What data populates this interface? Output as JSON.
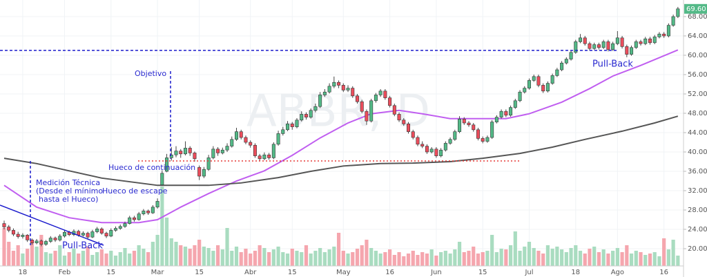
{
  "chart_data": {
    "type": "candlestick",
    "watermark": "ABBR, D",
    "categories": [
      null,
      null,
      null,
      null,
      "18",
      null,
      null,
      null,
      null,
      null,
      null,
      null,
      null,
      "Feb",
      null,
      null,
      null,
      null,
      null,
      null,
      null,
      null,
      null,
      "15",
      null,
      null,
      null,
      null,
      null,
      null,
      null,
      null,
      null,
      "Mar",
      null,
      null,
      null,
      null,
      null,
      null,
      null,
      null,
      "15",
      null,
      null,
      null,
      null,
      null,
      null,
      null,
      null,
      null,
      null,
      "Abr",
      null,
      null,
      null,
      null,
      null,
      null,
      null,
      null,
      "15",
      null,
      null,
      null,
      null,
      null,
      null,
      null,
      null,
      null,
      null,
      "May",
      null,
      null,
      null,
      null,
      null,
      null,
      null,
      null,
      null,
      "16",
      null,
      null,
      null,
      null,
      null,
      null,
      null,
      null,
      null,
      "Jun",
      null,
      null,
      null,
      null,
      null,
      null,
      null,
      null,
      null,
      "15",
      null,
      null,
      null,
      null,
      null,
      null,
      null,
      null,
      null,
      "Jul",
      null,
      null,
      null,
      null,
      null,
      null,
      null,
      null,
      null,
      "18",
      null,
      null,
      null,
      null,
      null,
      null,
      null,
      null,
      "Ago",
      null,
      null,
      null,
      null,
      null,
      null,
      null,
      null,
      null,
      "16",
      null,
      null,
      null
    ],
    "ohlc": [
      [
        25.2,
        25.8,
        24.0,
        24.5
      ],
      [
        24.5,
        24.9,
        23.4,
        23.8
      ],
      [
        23.8,
        24.2,
        22.6,
        23.0
      ],
      [
        23.0,
        23.5,
        22.1,
        22.5
      ],
      [
        22.5,
        23.2,
        22.1,
        22.8
      ],
      [
        22.8,
        23.0,
        21.4,
        21.8
      ],
      [
        21.8,
        22.1,
        20.8,
        21.2
      ],
      [
        21.2,
        22.0,
        20.9,
        21.6
      ],
      [
        21.6,
        21.9,
        20.5,
        20.9
      ],
      [
        20.9,
        21.8,
        20.6,
        21.5
      ],
      [
        21.5,
        22.6,
        21.2,
        22.2
      ],
      [
        22.2,
        22.5,
        21.4,
        21.8
      ],
      [
        21.8,
        23.0,
        21.5,
        22.6
      ],
      [
        22.6,
        23.8,
        22.3,
        23.4
      ],
      [
        23.4,
        23.7,
        22.6,
        22.9
      ],
      [
        22.9,
        24.0,
        22.6,
        23.6
      ],
      [
        23.6,
        23.9,
        22.5,
        22.8
      ],
      [
        22.8,
        23.6,
        22.5,
        23.2
      ],
      [
        23.2,
        23.5,
        22.0,
        22.4
      ],
      [
        22.4,
        23.9,
        22.2,
        23.5
      ],
      [
        23.5,
        24.5,
        23.2,
        24.1
      ],
      [
        24.1,
        24.4,
        22.9,
        23.2
      ],
      [
        23.2,
        23.5,
        22.2,
        22.6
      ],
      [
        22.6,
        24.2,
        22.4,
        23.8
      ],
      [
        23.8,
        24.6,
        23.5,
        24.2
      ],
      [
        24.2,
        25.0,
        23.9,
        24.6
      ],
      [
        24.6,
        25.6,
        24.3,
        25.2
      ],
      [
        25.2,
        26.8,
        25.0,
        26.4
      ],
      [
        26.4,
        26.8,
        25.6,
        26.0
      ],
      [
        26.0,
        27.6,
        25.8,
        27.2
      ],
      [
        27.2,
        28.2,
        26.9,
        27.8
      ],
      [
        27.8,
        28.1,
        27.0,
        27.4
      ],
      [
        27.4,
        29.0,
        27.2,
        28.6
      ],
      [
        28.6,
        30.4,
        28.3,
        29.8
      ],
      [
        33.2,
        36.2,
        33.0,
        35.6
      ],
      [
        36.0,
        39.6,
        35.8,
        38.8
      ],
      [
        38.8,
        41.0,
        38.2,
        39.4
      ],
      [
        39.4,
        41.2,
        38.9,
        40.2
      ],
      [
        40.2,
        40.6,
        38.8,
        39.6
      ],
      [
        39.6,
        42.2,
        39.3,
        40.8
      ],
      [
        40.8,
        41.2,
        39.2,
        39.8
      ],
      [
        39.8,
        40.1,
        38.0,
        38.6
      ],
      [
        36.8,
        37.2,
        34.2,
        35.0
      ],
      [
        35.0,
        36.9,
        34.6,
        36.4
      ],
      [
        36.4,
        39.4,
        36.1,
        38.8
      ],
      [
        38.8,
        41.2,
        38.5,
        40.6
      ],
      [
        40.6,
        41.0,
        39.2,
        39.8
      ],
      [
        39.8,
        40.9,
        39.5,
        40.4
      ],
      [
        40.4,
        41.8,
        40.0,
        41.2
      ],
      [
        41.2,
        43.2,
        40.9,
        42.6
      ],
      [
        42.6,
        45.0,
        42.3,
        44.2
      ],
      [
        44.2,
        44.6,
        42.6,
        43.0
      ],
      [
        43.0,
        43.4,
        41.6,
        42.0
      ],
      [
        42.0,
        42.4,
        40.9,
        41.4
      ],
      [
        41.4,
        41.8,
        38.8,
        39.2
      ],
      [
        39.2,
        39.6,
        38.2,
        38.6
      ],
      [
        38.6,
        39.9,
        38.3,
        39.4
      ],
      [
        39.4,
        39.8,
        38.4,
        38.8
      ],
      [
        38.8,
        42.0,
        38.5,
        41.6
      ],
      [
        41.6,
        44.4,
        41.3,
        43.8
      ],
      [
        43.8,
        45.2,
        43.4,
        44.6
      ],
      [
        44.6,
        46.4,
        44.3,
        45.8
      ],
      [
        45.8,
        46.2,
        44.6,
        45.2
      ],
      [
        45.2,
        47.0,
        44.9,
        46.6
      ],
      [
        46.6,
        48.4,
        46.3,
        47.8
      ],
      [
        47.8,
        48.2,
        46.7,
        47.2
      ],
      [
        47.2,
        49.0,
        46.9,
        48.6
      ],
      [
        48.6,
        50.0,
        48.2,
        49.4
      ],
      [
        49.4,
        52.4,
        49.1,
        51.8
      ],
      [
        51.8,
        53.0,
        51.4,
        52.4
      ],
      [
        52.4,
        54.2,
        52.1,
        53.6
      ],
      [
        53.6,
        55.6,
        53.2,
        54.4
      ],
      [
        54.4,
        54.8,
        53.2,
        53.8
      ],
      [
        53.8,
        54.2,
        52.4,
        52.8
      ],
      [
        52.8,
        53.8,
        52.4,
        53.2
      ],
      [
        53.2,
        53.6,
        51.2,
        51.6
      ],
      [
        51.6,
        52.0,
        50.0,
        50.4
      ],
      [
        50.4,
        50.8,
        48.0,
        48.4
      ],
      [
        48.4,
        48.8,
        45.6,
        46.4
      ],
      [
        46.4,
        51.0,
        46.1,
        50.6
      ],
      [
        50.6,
        52.2,
        50.2,
        51.8
      ],
      [
        51.8,
        53.0,
        51.4,
        52.6
      ],
      [
        52.6,
        53.0,
        50.8,
        51.2
      ],
      [
        51.2,
        51.6,
        49.2,
        49.6
      ],
      [
        49.6,
        50.0,
        47.4,
        47.8
      ],
      [
        47.8,
        48.2,
        46.2,
        46.6
      ],
      [
        46.6,
        47.0,
        45.4,
        45.8
      ],
      [
        45.8,
        46.2,
        43.8,
        44.2
      ],
      [
        44.2,
        44.6,
        42.6,
        43.0
      ],
      [
        43.0,
        43.4,
        41.2,
        41.6
      ],
      [
        41.6,
        42.2,
        40.8,
        41.2
      ],
      [
        41.2,
        41.6,
        39.6,
        40.0
      ],
      [
        40.0,
        41.0,
        39.7,
        40.6
      ],
      [
        40.6,
        41.0,
        38.8,
        39.2
      ],
      [
        39.2,
        40.8,
        38.9,
        40.4
      ],
      [
        40.4,
        42.2,
        40.1,
        41.8
      ],
      [
        41.8,
        43.0,
        41.5,
        42.6
      ],
      [
        42.6,
        44.6,
        42.3,
        44.2
      ],
      [
        44.2,
        47.4,
        43.9,
        46.8
      ],
      [
        46.8,
        47.2,
        45.6,
        46.0
      ],
      [
        46.0,
        46.4,
        45.2,
        45.6
      ],
      [
        45.6,
        46.0,
        44.2,
        44.6
      ],
      [
        44.6,
        45.0,
        42.4,
        42.8
      ],
      [
        42.8,
        43.2,
        41.8,
        42.2
      ],
      [
        42.2,
        43.4,
        41.9,
        43.0
      ],
      [
        43.0,
        46.6,
        42.7,
        46.2
      ],
      [
        46.2,
        47.6,
        45.9,
        47.2
      ],
      [
        47.2,
        48.8,
        46.9,
        48.4
      ],
      [
        48.4,
        48.8,
        47.2,
        47.6
      ],
      [
        47.6,
        49.6,
        47.3,
        49.2
      ],
      [
        49.2,
        51.0,
        48.9,
        50.6
      ],
      [
        50.6,
        52.8,
        50.3,
        52.4
      ],
      [
        52.4,
        53.6,
        52.1,
        53.2
      ],
      [
        53.2,
        55.2,
        52.9,
        54.8
      ],
      [
        54.8,
        56.0,
        54.5,
        55.6
      ],
      [
        55.6,
        56.0,
        53.4,
        53.8
      ],
      [
        53.8,
        54.2,
        52.2,
        52.6
      ],
      [
        52.6,
        54.6,
        52.3,
        54.2
      ],
      [
        54.2,
        56.2,
        53.9,
        55.8
      ],
      [
        55.8,
        57.4,
        55.5,
        57.0
      ],
      [
        57.0,
        58.8,
        56.7,
        58.4
      ],
      [
        58.4,
        59.6,
        58.1,
        59.2
      ],
      [
        59.2,
        61.0,
        58.9,
        60.6
      ],
      [
        60.6,
        63.2,
        60.3,
        62.8
      ],
      [
        62.8,
        64.4,
        62.5,
        63.6
      ],
      [
        63.6,
        64.0,
        62.0,
        62.4
      ],
      [
        62.4,
        62.8,
        61.0,
        61.4
      ],
      [
        61.4,
        62.6,
        61.1,
        62.2
      ],
      [
        62.2,
        62.6,
        61.2,
        61.6
      ],
      [
        61.6,
        63.2,
        61.3,
        62.8
      ],
      [
        62.8,
        63.2,
        60.8,
        61.2
      ],
      [
        61.2,
        62.8,
        60.9,
        62.4
      ],
      [
        62.4,
        65.0,
        62.1,
        63.6
      ],
      [
        63.6,
        64.0,
        61.4,
        61.8
      ],
      [
        61.8,
        62.2,
        59.6,
        60.2
      ],
      [
        60.2,
        62.0,
        59.9,
        61.6
      ],
      [
        61.6,
        63.2,
        61.3,
        62.8
      ],
      [
        62.8,
        63.2,
        62.0,
        62.4
      ],
      [
        62.4,
        63.8,
        62.1,
        63.4
      ],
      [
        63.4,
        63.8,
        62.2,
        62.6
      ],
      [
        62.6,
        64.2,
        62.3,
        63.8
      ],
      [
        63.8,
        64.8,
        63.5,
        64.4
      ],
      [
        64.4,
        64.8,
        63.6,
        64.0
      ],
      [
        64.0,
        66.6,
        63.7,
        66.2
      ],
      [
        66.2,
        68.4,
        65.9,
        68.0
      ],
      [
        68.0,
        70.0,
        67.7,
        69.6
      ]
    ],
    "volume": [
      55,
      35,
      22,
      30,
      18,
      25,
      38,
      28,
      45,
      20,
      18,
      22,
      30,
      15,
      20,
      25,
      18,
      22,
      28,
      16,
      20,
      24,
      18,
      22,
      15,
      20,
      26,
      18,
      22,
      30,
      25,
      20,
      35,
      45,
      115,
      70,
      40,
      35,
      30,
      28,
      25,
      30,
      38,
      28,
      26,
      22,
      30,
      24,
      55,
      22,
      28,
      20,
      25,
      18,
      22,
      30,
      26,
      20,
      24,
      28,
      20,
      18,
      25,
      22,
      20,
      30,
      18,
      22,
      26,
      20,
      24,
      28,
      48,
      22,
      18,
      20,
      25,
      30,
      38,
      26,
      22,
      18,
      20,
      24,
      16,
      20,
      14,
      18,
      22,
      16,
      20,
      18,
      24,
      15,
      20,
      22,
      18,
      24,
      35,
      20,
      22,
      28,
      18,
      20,
      22,
      45,
      20,
      25,
      24,
      30,
      50,
      22,
      28,
      35,
      26,
      22,
      18,
      30,
      25,
      28,
      24,
      20,
      26,
      30,
      22,
      18,
      25,
      28,
      20,
      24,
      18,
      22,
      26,
      20,
      30,
      18,
      22,
      20,
      16,
      18,
      20,
      14,
      40,
      24,
      38,
      15
    ],
    "up_color": "#53b987",
    "down_color": "#eb4d5c",
    "moving_averages": [
      {
        "color": "#c05ef0",
        "x": [
          0,
          7,
          14,
          21,
          29,
          33,
          38,
          44,
          50,
          56,
          62,
          68,
          74,
          79,
          85,
          90,
          96,
          102,
          108,
          113,
          120,
          126,
          131,
          137,
          145
        ],
        "values": [
          33.1,
          28.6,
          26.4,
          25.4,
          25.4,
          26,
          28.6,
          31.4,
          34,
          36.1,
          39.3,
          42.9,
          46,
          47.9,
          48.6,
          47.9,
          46.9,
          46.9,
          46.9,
          47.9,
          50.3,
          53.1,
          55.7,
          57.9,
          61.1
        ]
      },
      {
        "color": "#555555",
        "x": [
          0,
          7,
          14,
          21,
          29,
          33,
          44,
          51,
          59,
          66,
          73,
          81,
          88,
          96,
          103,
          111,
          118,
          125,
          133,
          140,
          145
        ],
        "values": [
          38.7,
          37.6,
          36.1,
          34.6,
          33.6,
          33.1,
          33.1,
          33.6,
          34.7,
          36,
          37.1,
          37.6,
          37.7,
          38,
          38.7,
          39.7,
          41,
          42.6,
          44.3,
          46,
          47.4
        ]
      }
    ],
    "ylim": [
      16.43,
      71.43
    ],
    "yticks": [
      {
        "value": 20,
        "label": "20.00"
      },
      {
        "value": 24,
        "label": "24.00"
      },
      {
        "value": 28,
        "label": "28.00"
      },
      {
        "value": 32,
        "label": "32.00"
      },
      {
        "value": 36,
        "label": "36.00"
      },
      {
        "value": 40,
        "label": "40.00"
      },
      {
        "value": 44,
        "label": "44.00"
      },
      {
        "value": 48,
        "label": "48.00"
      },
      {
        "value": 52,
        "label": "52.00"
      },
      {
        "value": 56,
        "label": "56.00"
      },
      {
        "value": 60,
        "label": "60.00"
      },
      {
        "value": 64,
        "label": "64.00"
      },
      {
        "value": 68,
        "label": "68.00"
      }
    ],
    "last_value_label": "69.60",
    "grid": true,
    "annotations": [
      "Objetivo",
      "Hueco de continuación",
      "Medición Técnica",
      "(Desde el mínimo",
      "hasta el Hueco)",
      "Hueco de escape",
      "Pull-Back",
      "Pull-Back"
    ]
  }
}
